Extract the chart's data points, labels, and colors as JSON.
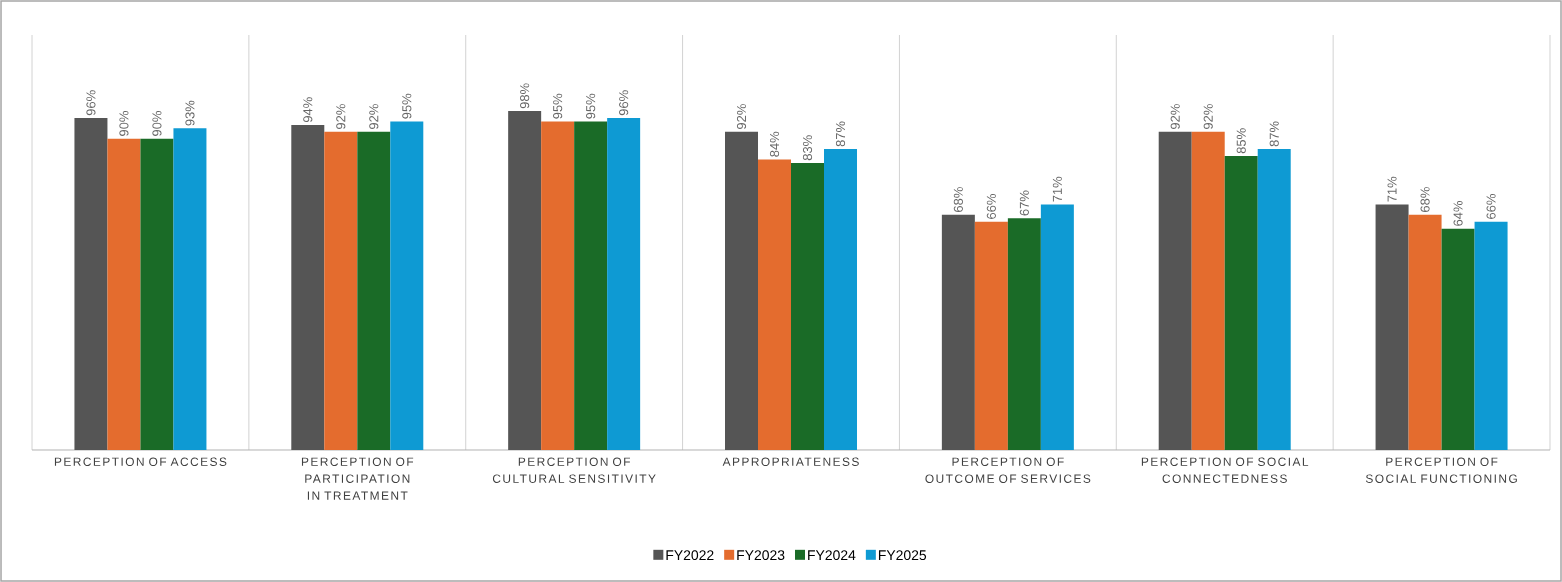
{
  "chart_data": {
    "type": "bar",
    "categories": [
      "PERCEPTION OF ACCESS",
      "PERCEPTION OF PARTICIPATION IN TREATMENT",
      "PERCEPTION OF CULTURAL SENSITIVITY",
      "APPROPRIATENESS",
      "PERCEPTION OF OUTCOME OF SERVICES",
      "PERCEPTION OF SOCIAL CONNECTEDNESS",
      "PERCEPTION OF SOCIAL FUNCTIONING"
    ],
    "series": [
      {
        "name": "FY2022",
        "color": "#555555",
        "values": [
          96,
          94,
          98,
          92,
          68,
          92,
          71
        ],
        "value_labels": [
          "96%",
          "94%",
          "98%",
          "92%",
          "68%",
          "92%",
          "71%"
        ]
      },
      {
        "name": "FY2023",
        "color": "#e46c2e",
        "values": [
          90,
          92,
          95,
          84,
          66,
          92,
          68
        ],
        "value_labels": [
          "90%",
          "92%",
          "95%",
          "84%",
          "66%",
          "92%",
          "68%"
        ]
      },
      {
        "name": "FY2024",
        "color": "#1a6b27",
        "values": [
          90,
          92,
          95,
          83,
          67,
          85,
          64
        ],
        "value_labels": [
          "90%",
          "92%",
          "95%",
          "83%",
          "67%",
          "85%",
          "64%"
        ]
      },
      {
        "name": "FY2025",
        "color": "#0e9ad3",
        "values": [
          93,
          95,
          96,
          87,
          71,
          87,
          66
        ],
        "value_labels": [
          "93%",
          "95%",
          "96%",
          "87%",
          "71%",
          "87%",
          "66%"
        ]
      }
    ],
    "ylim": [
      0,
      120
    ],
    "tick_labels": "x",
    "grid": "x",
    "legend": "bottom"
  }
}
